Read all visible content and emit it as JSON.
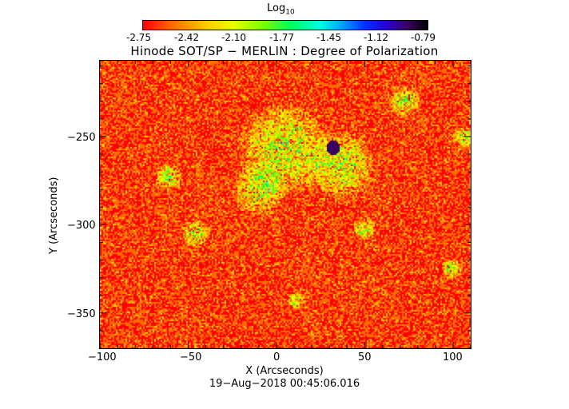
{
  "colorbar": {
    "title_main": "Log",
    "title_sub": "10",
    "ticks": [
      "-2.75",
      "-2.42",
      "-2.10",
      "-1.77",
      "-1.45",
      "-1.12",
      "-0.79"
    ],
    "colors": [
      "#ff0000",
      "#ff6a00",
      "#ffc800",
      "#e6ff00",
      "#7dff00",
      "#00ff5a",
      "#00ffe0",
      "#00a0ff",
      "#0030ff",
      "#2a00c8",
      "#3a0060",
      "#000000"
    ]
  },
  "plot": {
    "title": "Hinode SOT/SP − MERLIN : Degree of Polarization",
    "xlabel": "X (Arcseconds)",
    "ylabel": "Y (Arcseconds)",
    "xlim": [
      -100,
      110
    ],
    "ylim": [
      -370,
      -207
    ],
    "xticks": [
      "−100",
      "−50",
      "0",
      "50",
      "100"
    ],
    "yticks": [
      "−250",
      "−300",
      "−350"
    ],
    "xtick_values": [
      -100,
      -50,
      0,
      50,
      100
    ],
    "ytick_values": [
      -250,
      -300,
      -350
    ]
  },
  "footer": {
    "date": "19−Aug−2018 00:45:06.016"
  }
}
